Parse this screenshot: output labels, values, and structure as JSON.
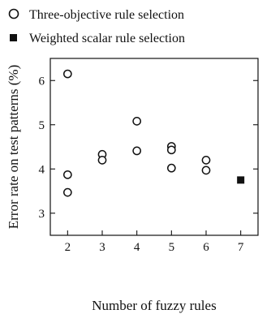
{
  "chart_data": {
    "type": "scatter",
    "title": "",
    "xlabel": "Number of fuzzy rules",
    "ylabel": "Error rate on test patterns (%)",
    "xlim": [
      1.5,
      7.5
    ],
    "ylim": [
      2.5,
      6.5
    ],
    "xticks": [
      2,
      3,
      4,
      5,
      6,
      7
    ],
    "yticks": [
      3,
      4,
      5,
      6
    ],
    "grid": false,
    "legend": "top",
    "series": [
      {
        "name": "Three-objective rule selection",
        "marker": "open-circle",
        "color": "#111111",
        "points": [
          {
            "x": 2,
            "y": 6.15
          },
          {
            "x": 2,
            "y": 3.87
          },
          {
            "x": 2,
            "y": 3.47
          },
          {
            "x": 3,
            "y": 4.33
          },
          {
            "x": 3,
            "y": 4.2
          },
          {
            "x": 4,
            "y": 5.08
          },
          {
            "x": 4,
            "y": 4.41
          },
          {
            "x": 5,
            "y": 4.51
          },
          {
            "x": 5,
            "y": 4.43
          },
          {
            "x": 5,
            "y": 4.02
          },
          {
            "x": 6,
            "y": 4.2
          },
          {
            "x": 6,
            "y": 3.97
          }
        ]
      },
      {
        "name": "Weighted scalar rule selection",
        "marker": "filled-square",
        "color": "#111111",
        "points": [
          {
            "x": 7,
            "y": 3.75
          }
        ]
      }
    ]
  }
}
